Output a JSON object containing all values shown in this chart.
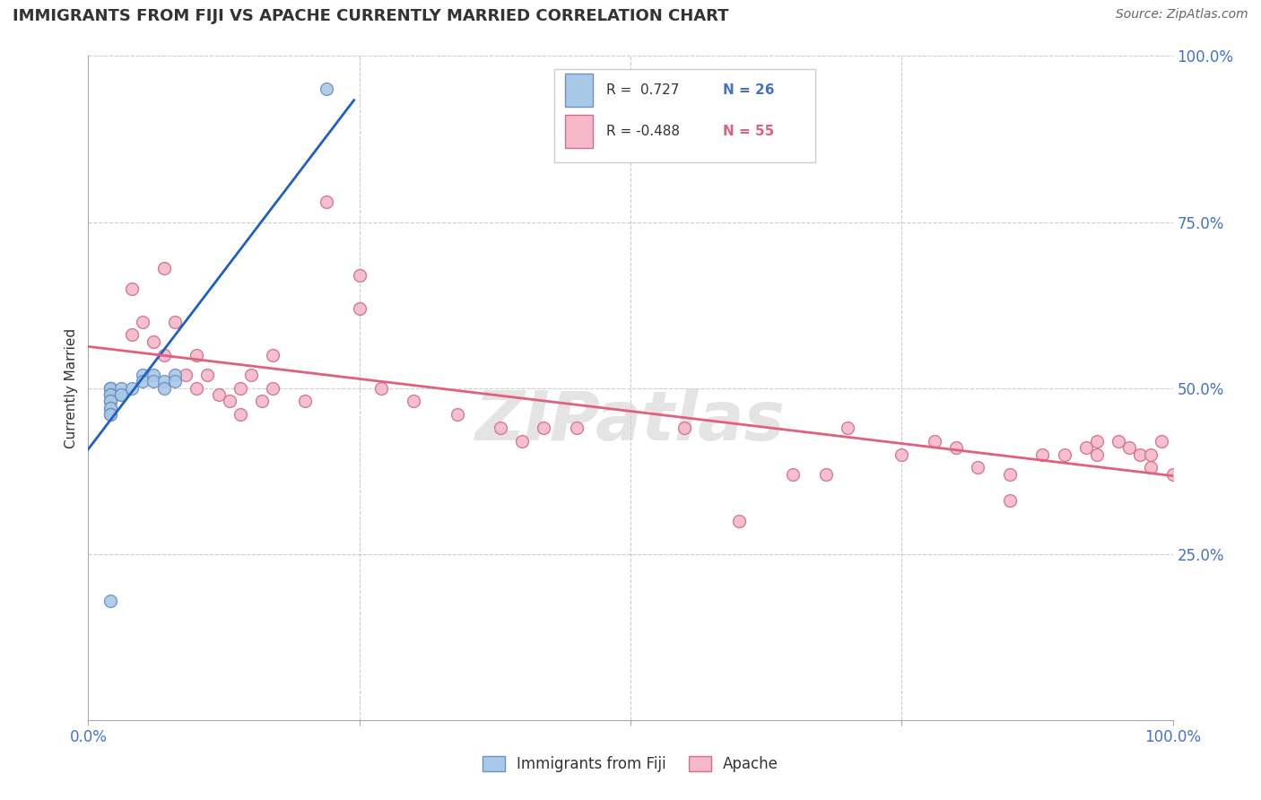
{
  "title": "IMMIGRANTS FROM FIJI VS APACHE CURRENTLY MARRIED CORRELATION CHART",
  "source": "Source: ZipAtlas.com",
  "ylabel": "Currently Married",
  "xlim": [
    0.0,
    1.0
  ],
  "ylim": [
    0.0,
    1.0
  ],
  "grid_color": "#cccccc",
  "background_color": "#ffffff",
  "blue_color": "#a8c8e8",
  "pink_color": "#f4b8c8",
  "blue_edge_color": "#7090c0",
  "pink_edge_color": "#d07090",
  "blue_line_color": "#2060c0",
  "pink_line_color": "#e06080",
  "axis_color": "#4472c4",
  "text_color": "#333333",
  "fiji_x": [
    0.02,
    0.02,
    0.02,
    0.02,
    0.02,
    0.02,
    0.02,
    0.02,
    0.02,
    0.02,
    0.02,
    0.02,
    0.02,
    0.03,
    0.03,
    0.03,
    0.04,
    0.05,
    0.05,
    0.06,
    0.06,
    0.07,
    0.07,
    0.08,
    0.08,
    0.02,
    0.22
  ],
  "fiji_y": [
    0.5,
    0.5,
    0.5,
    0.49,
    0.49,
    0.49,
    0.48,
    0.48,
    0.48,
    0.47,
    0.47,
    0.46,
    0.46,
    0.5,
    0.49,
    0.49,
    0.5,
    0.52,
    0.51,
    0.52,
    0.51,
    0.51,
    0.5,
    0.52,
    0.51,
    0.18,
    0.95
  ],
  "apache_x": [
    0.02,
    0.02,
    0.04,
    0.04,
    0.05,
    0.06,
    0.07,
    0.07,
    0.08,
    0.09,
    0.1,
    0.1,
    0.11,
    0.12,
    0.13,
    0.14,
    0.14,
    0.15,
    0.16,
    0.17,
    0.17,
    0.2,
    0.22,
    0.25,
    0.25,
    0.27,
    0.3,
    0.34,
    0.38,
    0.4,
    0.42,
    0.45,
    0.55,
    0.6,
    0.65,
    0.68,
    0.7,
    0.75,
    0.78,
    0.8,
    0.82,
    0.85,
    0.85,
    0.88,
    0.9,
    0.92,
    0.93,
    0.93,
    0.95,
    0.96,
    0.97,
    0.98,
    0.98,
    0.99,
    1.0
  ],
  "apache_y": [
    0.5,
    0.49,
    0.65,
    0.58,
    0.6,
    0.57,
    0.55,
    0.68,
    0.6,
    0.52,
    0.55,
    0.5,
    0.52,
    0.49,
    0.48,
    0.5,
    0.46,
    0.52,
    0.48,
    0.55,
    0.5,
    0.48,
    0.78,
    0.67,
    0.62,
    0.5,
    0.48,
    0.46,
    0.44,
    0.42,
    0.44,
    0.44,
    0.44,
    0.3,
    0.37,
    0.37,
    0.44,
    0.4,
    0.42,
    0.41,
    0.38,
    0.33,
    0.37,
    0.4,
    0.4,
    0.41,
    0.42,
    0.4,
    0.42,
    0.41,
    0.4,
    0.38,
    0.4,
    0.42,
    0.37
  ]
}
